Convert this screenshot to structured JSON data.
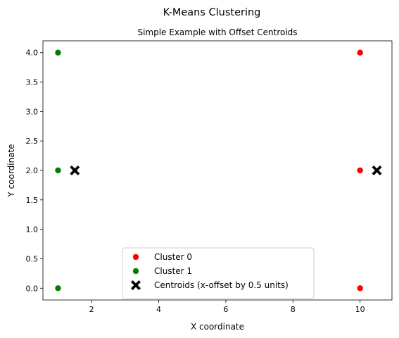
{
  "chart_data": {
    "type": "scatter",
    "title": "K-Means Clustering",
    "subtitle": "Simple Example with Offset Centroids",
    "xlabel": "X coordinate",
    "ylabel": "Y coordinate",
    "xlim": [
      0.55,
      10.95
    ],
    "ylim": [
      -0.2,
      4.2
    ],
    "xticks": [
      2,
      4,
      6,
      8,
      10
    ],
    "xtick_labels": [
      "2",
      "4",
      "6",
      "8",
      "10"
    ],
    "yticks": [
      0.0,
      0.5,
      1.0,
      1.5,
      2.0,
      2.5,
      3.0,
      3.5,
      4.0
    ],
    "ytick_labels": [
      "0.0",
      "0.5",
      "1.0",
      "1.5",
      "2.0",
      "2.5",
      "3.0",
      "3.5",
      "4.0"
    ],
    "grid": false,
    "legend_position": "lower-center",
    "series": [
      {
        "name": "Cluster 0",
        "marker": "circle",
        "color": "#ff0000",
        "x": [
          10,
          10,
          10
        ],
        "y": [
          2,
          4,
          0
        ]
      },
      {
        "name": "Cluster 1",
        "marker": "circle",
        "color": "#008000",
        "x": [
          1,
          1,
          1
        ],
        "y": [
          2,
          4,
          0
        ]
      },
      {
        "name": "Centroids (x-offset by 0.5 units)",
        "marker": "x-filled",
        "color": "#000000",
        "x": [
          10.5,
          1.5
        ],
        "y": [
          2,
          2
        ]
      }
    ]
  }
}
